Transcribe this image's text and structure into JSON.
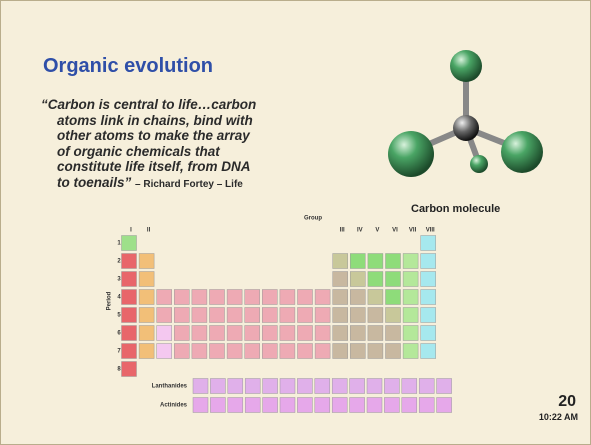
{
  "header": {
    "title": "Organic evolution"
  },
  "quote": {
    "lines": [
      "“Carbon is central to life…carbon",
      "atoms link in chains, bind with",
      "other atoms to make the array",
      "of organic chemicals that",
      "constitute life itself, from DNA",
      "to toenails”"
    ],
    "attribution": "– Richard Fortey – Life"
  },
  "figure": {
    "caption": "Carbon molecule"
  },
  "periodic_table": {
    "group_title": "Group",
    "groups": [
      "I",
      "II",
      "III",
      "IV",
      "V",
      "VI",
      "VII",
      "VIII"
    ],
    "period_title": "Period",
    "periods": [
      "1",
      "2",
      "3",
      "4",
      "5",
      "6",
      "7",
      "8"
    ],
    "lanthanides": "Lanthanides",
    "actinides": "Actinides"
  },
  "footer": {
    "slide_number": "20",
    "time": "10:22 AM"
  }
}
